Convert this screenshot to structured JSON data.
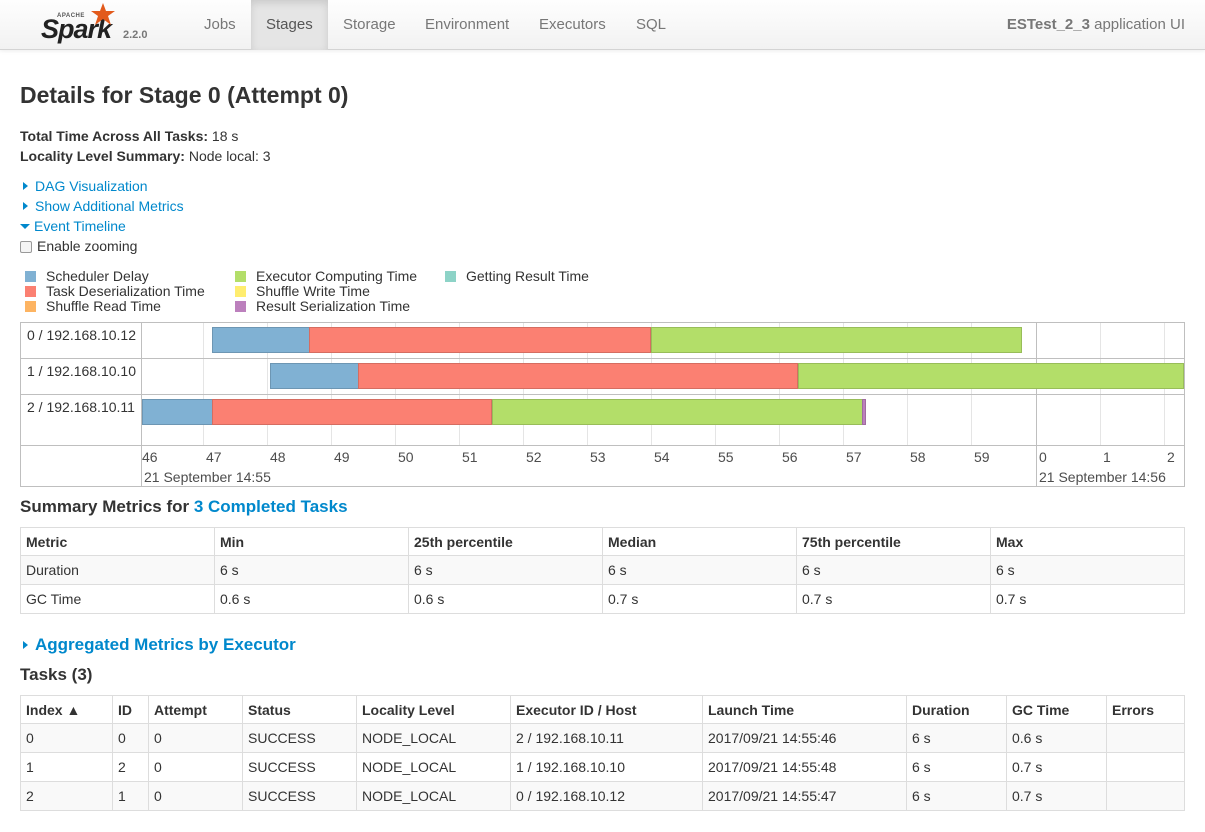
{
  "navbar": {
    "brand_apache": "APACHE",
    "brand_name": "Spark",
    "version": "2.2.0",
    "tabs": [
      {
        "label": "Jobs",
        "active": false
      },
      {
        "label": "Stages",
        "active": true
      },
      {
        "label": "Storage",
        "active": false
      },
      {
        "label": "Environment",
        "active": false
      },
      {
        "label": "Executors",
        "active": false
      },
      {
        "label": "SQL",
        "active": false
      }
    ],
    "app_name": "ESTest_2_3",
    "app_suffix": " application UI"
  },
  "page": {
    "title": "Details for Stage 0 (Attempt 0)",
    "total_time_label": "Total Time Across All Tasks:",
    "total_time_value": " 18 s",
    "locality_label": "Locality Level Summary:",
    "locality_value": " Node local: 3",
    "dag_link": "DAG Visualization",
    "metrics_link": "Show Additional Metrics",
    "timeline_link": "Event Timeline",
    "zoom_label": "Enable zooming"
  },
  "legend": [
    {
      "label": "Scheduler Delay",
      "color": "#80b1d3"
    },
    {
      "label": "Task Deserialization Time",
      "color": "#fb8072"
    },
    {
      "label": "Shuffle Read Time",
      "color": "#fdb462"
    },
    {
      "label": "Executor Computing Time",
      "color": "#b3de69"
    },
    {
      "label": "Shuffle Write Time",
      "color": "#ffed6f"
    },
    {
      "label": "Result Serialization Time",
      "color": "#bc80bd"
    },
    {
      "label": "Getting Result Time",
      "color": "#8dd3c7"
    }
  ],
  "timeline": {
    "rows": [
      "0 / 192.168.10.12",
      "1 / 192.168.10.10",
      "2 / 192.168.10.11"
    ],
    "ticks": [
      "46",
      "47",
      "48",
      "49",
      "50",
      "51",
      "52",
      "53",
      "54",
      "55",
      "56",
      "57",
      "58",
      "59",
      "0",
      "1",
      "2"
    ],
    "date_left": "21 September 14:55",
    "date_right": "21 September 14:56"
  },
  "summary": {
    "title_prefix": "Summary Metrics for ",
    "title_link": "3 Completed Tasks",
    "headers": [
      "Metric",
      "Min",
      "25th percentile",
      "Median",
      "75th percentile",
      "Max"
    ],
    "rows": [
      [
        "Duration",
        "6 s",
        "6 s",
        "6 s",
        "6 s",
        "6 s"
      ],
      [
        "GC Time",
        "0.6 s",
        "0.6 s",
        "0.7 s",
        "0.7 s",
        "0.7 s"
      ]
    ]
  },
  "aggregated": {
    "link": "Aggregated Metrics by Executor"
  },
  "tasks": {
    "title": "Tasks (3)",
    "headers": [
      "Index ▲",
      "ID",
      "Attempt",
      "Status",
      "Locality Level",
      "Executor ID / Host",
      "Launch Time",
      "Duration",
      "GC Time",
      "Errors"
    ],
    "rows": [
      [
        "0",
        "0",
        "0",
        "SUCCESS",
        "NODE_LOCAL",
        "2 / 192.168.10.11",
        "2017/09/21 14:55:46",
        "6 s",
        "0.6 s",
        ""
      ],
      [
        "1",
        "2",
        "0",
        "SUCCESS",
        "NODE_LOCAL",
        "1 / 192.168.10.10",
        "2017/09/21 14:55:48",
        "6 s",
        "0.7 s",
        ""
      ],
      [
        "2",
        "1",
        "0",
        "SUCCESS",
        "NODE_LOCAL",
        "0 / 192.168.10.12",
        "2017/09/21 14:55:47",
        "6 s",
        "0.7 s",
        ""
      ]
    ]
  }
}
